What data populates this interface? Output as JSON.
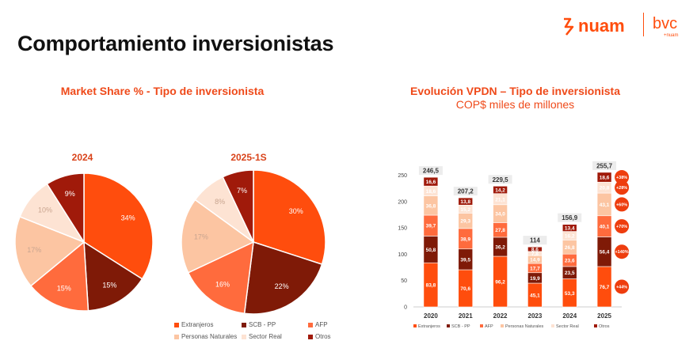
{
  "header": {
    "title": "Comportamiento inversionistas",
    "logo_nuam": "nuam",
    "logo_bvc": "bvc",
    "logo_bvc_sub": "+nuam"
  },
  "left": {
    "title": "Market Share % - Tipo de inversionista"
  },
  "right": {
    "title": "Evolución VPDN – Tipo de inversionista",
    "subtitle": "COP$ miles de millones"
  },
  "colors": {
    "Extranjeros": "#ff4d0d",
    "SCB - PP": "#7f1a07",
    "AFP": "#ff6b3d",
    "Personas Naturales": "#fcc5a2",
    "Sector Real": "#fde3d3",
    "Otros": "#a01a0a",
    "total_label": "#333333",
    "growth_bubble": "#ee3d0e"
  },
  "chart_data": [
    {
      "type": "pie",
      "title": "2024",
      "labels": [
        "Extranjeros",
        "SCB - PP",
        "AFP",
        "Personas Naturales",
        "Sector Real",
        "Otros"
      ],
      "values": [
        34,
        15,
        15,
        17,
        10,
        9
      ],
      "value_labels": [
        "34%",
        "15%",
        "15%",
        "17%",
        "10%",
        "9%"
      ]
    },
    {
      "type": "pie",
      "title": "2025-1S",
      "labels": [
        "Extranjeros",
        "SCB - PP",
        "AFP",
        "Personas Naturales",
        "Sector Real",
        "Otros"
      ],
      "values": [
        30,
        22,
        16,
        17,
        8,
        7
      ],
      "value_labels": [
        "30%",
        "22%",
        "16%",
        "17%",
        "8%",
        "7%"
      ]
    },
    {
      "type": "bar",
      "stacked": true,
      "categories": [
        "2020",
        "2021",
        "2022",
        "2023",
        "2024",
        "2025"
      ],
      "series": [
        {
          "name": "Extranjeros",
          "values": [
            83.8,
            70.6,
            96.2,
            45.1,
            53.3,
            76.7
          ]
        },
        {
          "name": "SCB - PP",
          "values": [
            50.8,
            39.5,
            36.2,
            19.9,
            23.5,
            56.4
          ]
        },
        {
          "name": "AFP",
          "values": [
            39.7,
            38.9,
            27.8,
            17.7,
            23.6,
            40.1
          ]
        },
        {
          "name": "Personas Naturales",
          "values": [
            36.8,
            29.3,
            34.0,
            14.9,
            26.8,
            43.1
          ]
        },
        {
          "name": "Sector Real",
          "values": [
            18.6,
            15.2,
            21.1,
            7.8,
            16.2,
            20.8
          ]
        },
        {
          "name": "Otros",
          "values": [
            16.6,
            13.8,
            14.2,
            8.6,
            13.4,
            18.6
          ]
        }
      ],
      "value_labels": [
        [
          "83,8",
          "70,6",
          "96,2",
          "45,1",
          "53,3",
          "76,7"
        ],
        [
          "50,8",
          "39,5",
          "36,2",
          "19,9",
          "23,5",
          "56,4"
        ],
        [
          "39,7",
          "38,9",
          "27,8",
          "17,7",
          "23,6",
          "40,1"
        ],
        [
          "36,8",
          "29,3",
          "34,0",
          "14,9",
          "26,8",
          "43,1"
        ],
        [
          "18,6",
          "15,2",
          "21,1",
          "7,8",
          "16,2",
          "20,8"
        ],
        [
          "16,6",
          "13,8",
          "14,2",
          "8,6",
          "13,4",
          "18,6"
        ]
      ],
      "totals": [
        "246,5",
        "207,2",
        "229,5",
        "114",
        "156,9",
        "255,7"
      ],
      "growth_labels": [
        "+38%",
        "+28%",
        "+60%",
        "+70%",
        "+140%",
        "+44%"
      ],
      "yticks": [
        0,
        50,
        100,
        150,
        200,
        250
      ],
      "ylim": [
        0,
        260
      ],
      "legend_position": "bottom",
      "legend": [
        "Extranjeros",
        "SCB - PP",
        "AFP",
        "Personas Naturales",
        "Sector Real",
        "Otros"
      ]
    }
  ]
}
